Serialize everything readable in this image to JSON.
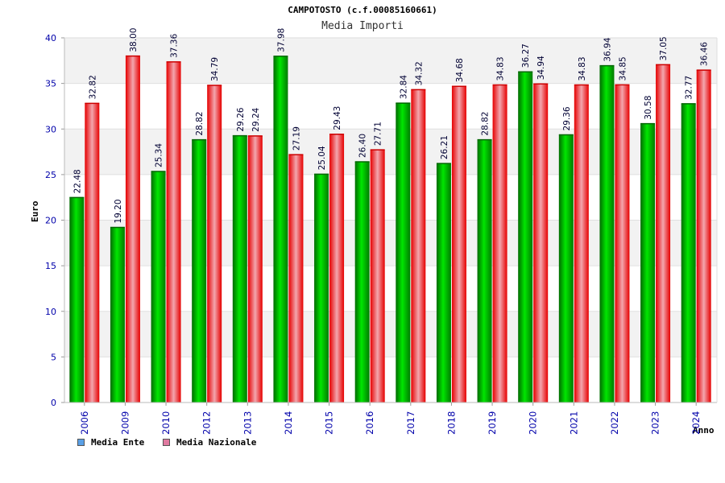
{
  "chart_data": {
    "type": "bar",
    "title": "CAMPOTOSTO (c.f.00085160661)",
    "subtitle": "Media Importi",
    "xlabel": "Anno",
    "ylabel": "Euro",
    "ylim": [
      0,
      40
    ],
    "yticks": [
      "0",
      "5",
      "10",
      "15",
      "20",
      "25",
      "30",
      "35",
      "40"
    ],
    "grid": true,
    "legend_position": "bottom-left",
    "categories": [
      "2006",
      "2009",
      "2010",
      "2012",
      "2013",
      "2014",
      "2015",
      "2016",
      "2017",
      "2018",
      "2019",
      "2020",
      "2021",
      "2022",
      "2023",
      "2024"
    ],
    "series": [
      {
        "name": "Media Ente",
        "color": "#00b300",
        "values": [
          22.48,
          19.2,
          25.34,
          28.82,
          29.26,
          37.98,
          25.04,
          26.4,
          32.84,
          26.21,
          28.82,
          36.27,
          29.36,
          36.94,
          30.58,
          32.77
        ],
        "labels": [
          "22.48",
          "19.20",
          "25.34",
          "28.82",
          "29.26",
          "37.98",
          "25.04",
          "26.40",
          "32.84",
          "26.21",
          "28.82",
          "36.27",
          "29.36",
          "36.94",
          "30.58",
          "32.77"
        ]
      },
      {
        "name": "Media Nazionale",
        "color": "#e60000",
        "values": [
          32.82,
          38.0,
          37.36,
          34.79,
          29.24,
          27.19,
          29.43,
          27.71,
          34.32,
          34.68,
          34.83,
          34.94,
          34.83,
          34.85,
          37.05,
          36.46
        ],
        "labels": [
          "32.82",
          "38.00",
          "37.36",
          "34.79",
          "29.24",
          "27.19",
          "29.43",
          "27.71",
          "34.32",
          "34.68",
          "34.83",
          "34.94",
          "34.83",
          "34.85",
          "37.05",
          "36.46"
        ]
      }
    ],
    "legend": [
      {
        "label": "Media Ente",
        "color": "#5aa0e6"
      },
      {
        "label": "Media Nazionale",
        "color": "#e07aa0"
      }
    ]
  }
}
